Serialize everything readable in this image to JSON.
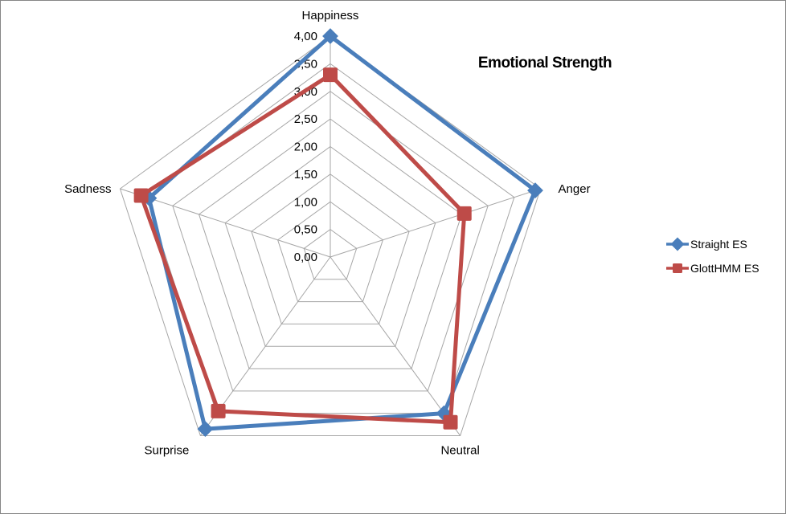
{
  "chart_data": {
    "type": "radar",
    "title": "Emotional Strength",
    "categories": [
      "Happiness",
      "Anger",
      "Neutral",
      "Surprise",
      "Sadness"
    ],
    "rmin": 0,
    "rmax": 4,
    "tick_step": 0.5,
    "tick_labels": [
      "0,00",
      "0,50",
      "1,00",
      "1,50",
      "2,00",
      "2,50",
      "3,00",
      "3,50",
      "4,00"
    ],
    "grid": true,
    "legend_position": "right",
    "series": [
      {
        "name": "Straight ES",
        "color": "#4a7ebb",
        "marker": "diamond",
        "values": [
          4.0,
          3.9,
          3.5,
          3.85,
          3.45
        ]
      },
      {
        "name": "GlottHMM ES",
        "color": "#be4b48",
        "marker": "square",
        "values": [
          3.3,
          2.55,
          3.7,
          3.45,
          3.6
        ]
      }
    ]
  }
}
